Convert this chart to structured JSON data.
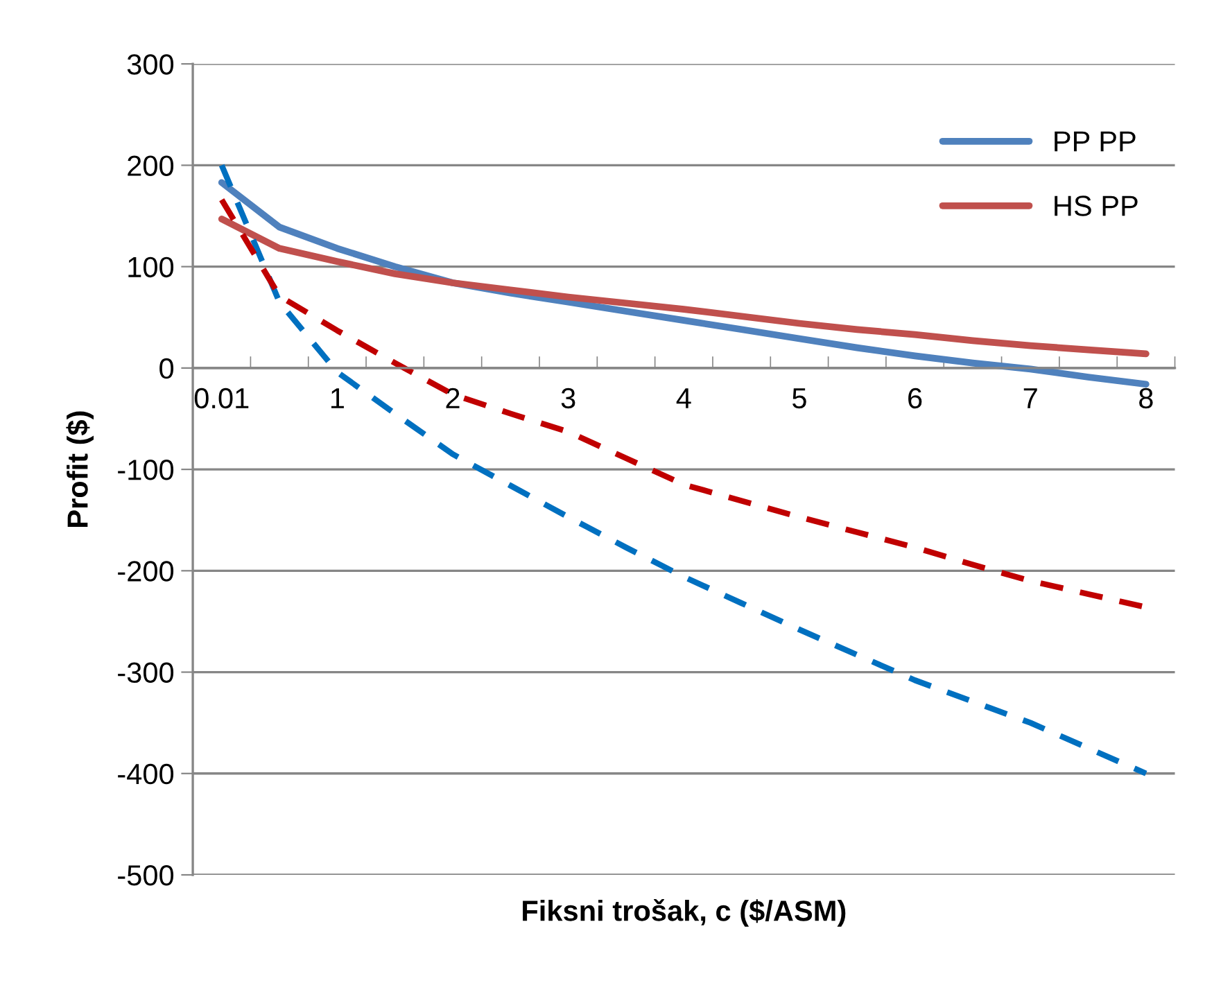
{
  "chart_data": {
    "type": "line",
    "xlabel": "Fiksni trošak, c ($/ASM)",
    "ylabel": "Profit ($)",
    "categories": [
      "0.01",
      null,
      "1",
      null,
      "2",
      null,
      "3",
      null,
      "4",
      null,
      "5",
      null,
      "6",
      null,
      "7",
      null,
      "8"
    ],
    "ylim": [
      -500,
      300
    ],
    "yticks": [
      -500,
      -400,
      -300,
      -200,
      -100,
      0,
      100,
      200,
      300
    ],
    "grid": "y",
    "legend": "top right",
    "marker": "none",
    "series": [
      {
        "name": "PP PP",
        "color": "#4f81bd",
        "line_style": "solid",
        "values": [
          183,
          139,
          118,
          100,
          84,
          74,
          65,
          56,
          47,
          38,
          29,
          20,
          12,
          5,
          -1,
          -9,
          -16
        ]
      },
      {
        "name": "HS PP",
        "color": "#c0504d",
        "line_style": "solid",
        "values": [
          147,
          118,
          105,
          93,
          84,
          77,
          70,
          64,
          58,
          51,
          44,
          38,
          33,
          27,
          22,
          18,
          14
        ]
      },
      {
        "color": "#0070c0",
        "line_style": "dashed",
        "values": [
          200,
          65,
          -4,
          -45,
          -85,
          -116,
          -147,
          -177,
          -206,
          -232,
          -258,
          -283,
          -308,
          -329,
          -350,
          -375,
          -400
        ]
      },
      {
        "color": "#c00000",
        "line_style": "dashed",
        "values": [
          166,
          71,
          37,
          5,
          -26,
          -45,
          -63,
          -89,
          -115,
          -131,
          -147,
          -162,
          -177,
          -194,
          -210,
          -223,
          -236
        ]
      }
    ]
  }
}
